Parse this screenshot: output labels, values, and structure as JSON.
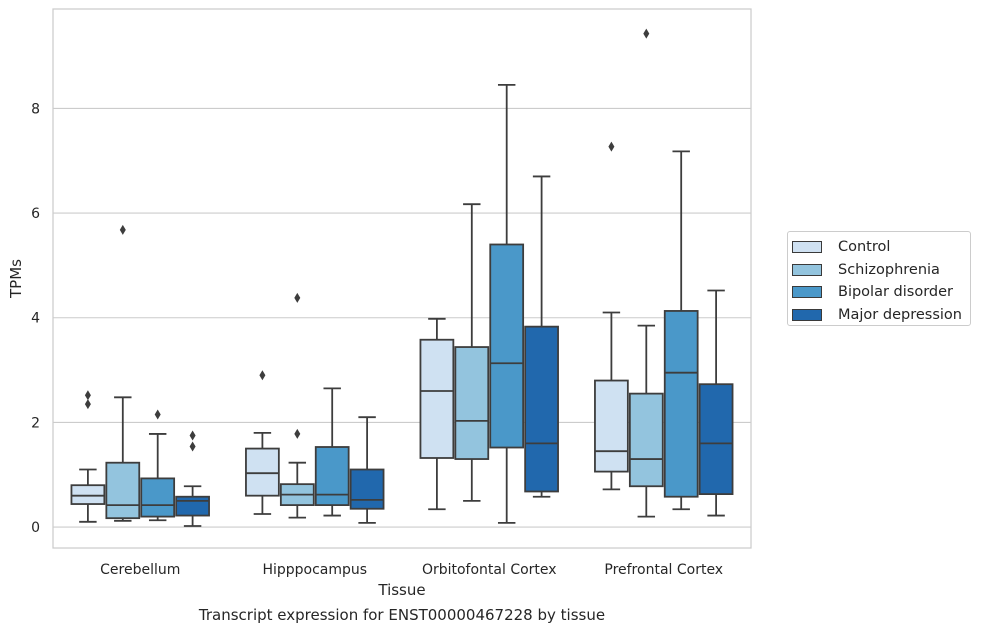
{
  "chart_data": {
    "type": "boxplot",
    "caption": "Transcript expression for ENST00000467228 by tissue",
    "xlabel": "Tissue",
    "ylabel": "TPMs",
    "ylim": [
      -0.4,
      9.9
    ],
    "yticks": [
      0,
      2,
      4,
      6,
      8
    ],
    "grid": true,
    "legend_position": "right",
    "categories": [
      "Cerebellum",
      "Hipppocampus",
      "Orbitofontal Cortex",
      "Prefrontal Cortex"
    ],
    "series": [
      {
        "name": "Control",
        "color": "#cfe1f2",
        "boxes": [
          {
            "whislo": 0.1,
            "q1": 0.44,
            "med": 0.6,
            "q3": 0.8,
            "whishi": 1.1,
            "fliers": [
              2.35,
              2.52
            ]
          },
          {
            "whislo": 0.25,
            "q1": 0.6,
            "med": 1.03,
            "q3": 1.5,
            "whishi": 1.8,
            "fliers": [
              2.9
            ]
          },
          {
            "whislo": 0.34,
            "q1": 1.32,
            "med": 2.6,
            "q3": 3.58,
            "whishi": 3.98,
            "fliers": []
          },
          {
            "whislo": 0.72,
            "q1": 1.06,
            "med": 1.45,
            "q3": 2.8,
            "whishi": 4.1,
            "fliers": [
              7.27
            ]
          }
        ]
      },
      {
        "name": "Schizophrenia",
        "color": "#93c4de",
        "boxes": [
          {
            "whislo": 0.12,
            "q1": 0.17,
            "med": 0.42,
            "q3": 1.23,
            "whishi": 2.48,
            "fliers": [
              5.68
            ]
          },
          {
            "whislo": 0.18,
            "q1": 0.42,
            "med": 0.62,
            "q3": 0.82,
            "whishi": 1.23,
            "fliers": [
              1.78,
              4.38
            ]
          },
          {
            "whislo": 0.5,
            "q1": 1.3,
            "med": 2.03,
            "q3": 3.44,
            "whishi": 6.17,
            "fliers": []
          },
          {
            "whislo": 0.2,
            "q1": 0.78,
            "med": 1.3,
            "q3": 2.55,
            "whishi": 3.85,
            "fliers": [
              9.43
            ]
          }
        ]
      },
      {
        "name": "Bipolar disorder",
        "color": "#4a98c9",
        "boxes": [
          {
            "whislo": 0.13,
            "q1": 0.2,
            "med": 0.42,
            "q3": 0.93,
            "whishi": 1.78,
            "fliers": [
              2.15
            ]
          },
          {
            "whislo": 0.22,
            "q1": 0.42,
            "med": 0.62,
            "q3": 1.53,
            "whishi": 2.65,
            "fliers": []
          },
          {
            "whislo": 0.08,
            "q1": 1.52,
            "med": 3.13,
            "q3": 5.4,
            "whishi": 8.45,
            "fliers": []
          },
          {
            "whislo": 0.34,
            "q1": 0.58,
            "med": 2.95,
            "q3": 4.13,
            "whishi": 7.18,
            "fliers": []
          }
        ]
      },
      {
        "name": "Major depression",
        "color": "#2168ad",
        "boxes": [
          {
            "whislo": 0.02,
            "q1": 0.22,
            "med": 0.5,
            "q3": 0.58,
            "whishi": 0.78,
            "fliers": [
              1.54,
              1.75
            ]
          },
          {
            "whislo": 0.08,
            "q1": 0.35,
            "med": 0.52,
            "q3": 1.1,
            "whishi": 2.1,
            "fliers": []
          },
          {
            "whislo": 0.58,
            "q1": 0.68,
            "med": 1.6,
            "q3": 3.83,
            "whishi": 6.7,
            "fliers": []
          },
          {
            "whislo": 0.22,
            "q1": 0.63,
            "med": 1.6,
            "q3": 2.73,
            "whishi": 4.52,
            "fliers": []
          }
        ]
      }
    ]
  }
}
